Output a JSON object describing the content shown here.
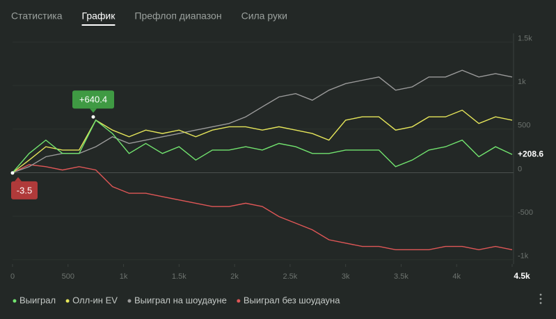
{
  "tabs": [
    "Статистика",
    "График",
    "Префлоп диапазон",
    "Сила руки"
  ],
  "active_tab": 1,
  "chart_data": {
    "type": "line",
    "x": [
      0,
      150,
      300,
      450,
      600,
      750,
      900,
      1050,
      1200,
      1350,
      1500,
      1650,
      1800,
      1950,
      2100,
      2250,
      2400,
      2550,
      2700,
      2850,
      3000,
      3150,
      3300,
      3450,
      3600,
      3750,
      3900,
      4050,
      4200,
      4350,
      4500
    ],
    "xlim": [
      0,
      4500
    ],
    "xticks": [
      0,
      500,
      {
        "value": 1000,
        "label": "1k"
      },
      {
        "value": 1500,
        "label": "1.5k"
      },
      {
        "value": 2000,
        "label": "2k"
      },
      {
        "value": 2500,
        "label": "2.5k"
      },
      {
        "value": 3000,
        "label": "3k"
      },
      {
        "value": 3500,
        "label": "3.5k"
      },
      {
        "value": 4000,
        "label": "4k"
      },
      {
        "value": 4500,
        "label": "4.5k"
      }
    ],
    "ylim": [
      -1050,
      1600
    ],
    "yticks": [
      {
        "value": -1000,
        "label": "-1k"
      },
      -500,
      0,
      500,
      {
        "value": 1000,
        "label": "1k"
      },
      {
        "value": 1500,
        "label": "1.5k"
      }
    ],
    "grid": true,
    "series": [
      {
        "name": "Выиграл",
        "color": "#72e46f",
        "values": [
          0,
          221,
          374,
          221,
          221,
          603,
          450,
          221,
          336,
          221,
          298,
          145,
          260,
          260,
          298,
          260,
          336,
          298,
          221,
          221,
          260,
          260,
          260,
          69,
          145,
          260,
          298,
          374,
          183,
          298,
          208.6
        ]
      },
      {
        "name": "Олл-ин EV",
        "color": "#e6e65a",
        "values": [
          0,
          145,
          298,
          260,
          260,
          603,
          489,
          412,
          489,
          450,
          489,
          412,
          489,
          527,
          527,
          489,
          527,
          489,
          450,
          374,
          603,
          641,
          641,
          489,
          527,
          641,
          641,
          718,
          565,
          641,
          603
        ]
      },
      {
        "name": "Выиграл на шоудауне",
        "color": "#9b9b9b",
        "values": [
          0,
          69,
          183,
          221,
          221,
          298,
          412,
          336,
          374,
          412,
          450,
          489,
          527,
          565,
          641,
          756,
          870,
          908,
          832,
          947,
          1023,
          1061,
          1099,
          947,
          985,
          1099,
          1099,
          1176,
          1099,
          1137,
          1099
        ]
      },
      {
        "name": "Выиграл без шоудауна",
        "color": "#e05757",
        "values": [
          0,
          92,
          69,
          31,
          69,
          31,
          -160,
          -237,
          -237,
          -275,
          -313,
          -351,
          -389,
          -389,
          -351,
          -389,
          -504,
          -580,
          -656,
          -771,
          -809,
          -847,
          -847,
          -885,
          -885,
          -885,
          -847,
          -847,
          -885,
          -847,
          -885
        ]
      }
    ],
    "annotations": [
      {
        "label": "+640.4",
        "x": 727,
        "value": 640.4,
        "color": "#3f9a43"
      },
      {
        "label": "-3.5",
        "x": 0,
        "value": -3.5,
        "color": "#b03a3a"
      },
      {
        "label": "+208.6",
        "x": 4500,
        "value": 208.6
      }
    ]
  }
}
